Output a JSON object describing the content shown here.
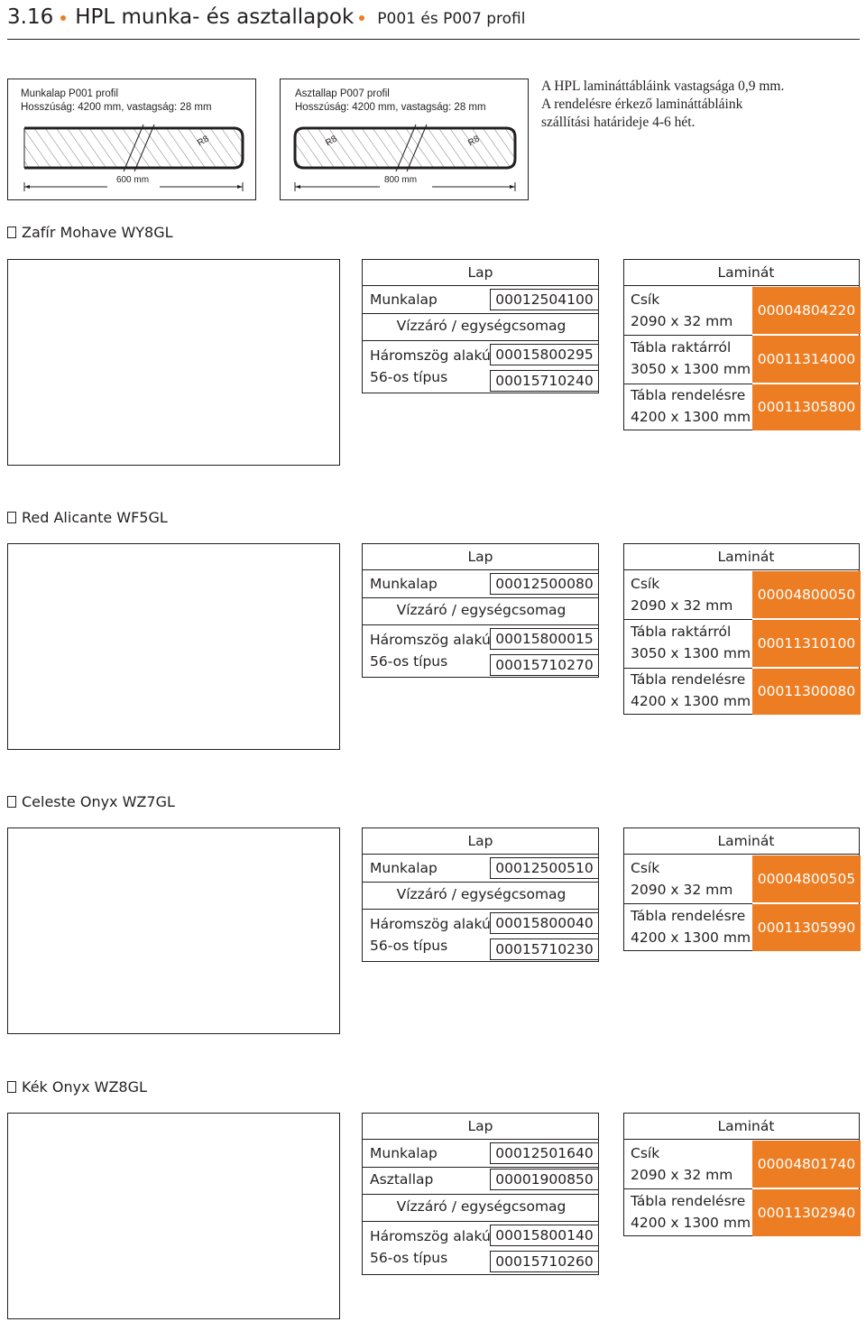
{
  "header": {
    "number": "3.16",
    "title": "HPL munka- és asztallapok",
    "subtitle": "P001 és P007 profil"
  },
  "profiles": [
    {
      "name": "Munkalap P001 profil",
      "desc": "Hosszúság: 4200 mm, vastagság: 28 mm",
      "radius": "R8",
      "width_label": "600 mm"
    },
    {
      "name": "Asztallap P007 profil",
      "desc": "Hosszúság: 4200 mm, vastagság: 28 mm",
      "radius_left": "R8",
      "radius_right": "R8",
      "width_label": "800 mm"
    }
  ],
  "note": {
    "line1": "A HPL laminát­tábláink vastagsága 0,9 mm.",
    "line2": "A rendelésre érkező laminát­tábláink",
    "line3": "szállítási határideje 4-6 hét."
  },
  "sections": [
    {
      "name": "Zafír Mohave WY8GL",
      "lap": {
        "header": "Lap",
        "munkalap_label": "Munkalap",
        "munkalap_code": "00012504100",
        "vizzaro_label": "Vízzáró / egységcsomag",
        "haromszog_label": "Háromszög alakú",
        "haromszog_code": "00015800295",
        "tipus_label": "56-os típus",
        "tipus_code": "00015710240"
      },
      "laminat": {
        "header": "Laminát",
        "rows": [
          {
            "label1": "Csík",
            "label2": "2090 x 32 mm",
            "code": "00004804220"
          },
          {
            "label1": "Tábla raktárról",
            "label2": "3050 x 1300 mm",
            "code": "00011314000"
          },
          {
            "label1": "Tábla rendelésre",
            "label2": "4200 x 1300 mm",
            "code": "00011305800"
          }
        ]
      }
    },
    {
      "name": "Red Alicante WF5GL",
      "lap": {
        "header": "Lap",
        "munkalap_label": "Munkalap",
        "munkalap_code": "00012500080",
        "vizzaro_label": "Vízzáró / egységcsomag",
        "haromszog_label": "Háromszög alakú",
        "haromszog_code": "00015800015",
        "tipus_label": "56-os típus",
        "tipus_code": "00015710270"
      },
      "laminat": {
        "header": "Laminát",
        "rows": [
          {
            "label1": "Csík",
            "label2": "2090 x 32 mm",
            "code": "00004800050"
          },
          {
            "label1": "Tábla raktárról",
            "label2": "3050 x 1300 mm",
            "code": "00011310100"
          },
          {
            "label1": "Tábla rendelésre",
            "label2": "4200 x 1300 mm",
            "code": "00011300080"
          }
        ]
      }
    },
    {
      "name": "Celeste Onyx WZ7GL",
      "lap": {
        "header": "Lap",
        "munkalap_label": "Munkalap",
        "munkalap_code": "00012500510",
        "vizzaro_label": "Vízzáró / egységcsomag",
        "haromszog_label": "Háromszög alakú",
        "haromszog_code": "00015800040",
        "tipus_label": "56-os típus",
        "tipus_code": "00015710230"
      },
      "laminat": {
        "header": "Laminát",
        "rows": [
          {
            "label1": "Csík",
            "label2": "2090 x 32 mm",
            "code": "00004800505"
          },
          {
            "label1": "Tábla rendelésre",
            "label2": "4200 x 1300 mm",
            "code": "00011305990"
          }
        ]
      }
    },
    {
      "name": "Kék Onyx WZ8GL",
      "lap": {
        "header": "Lap",
        "munkalap_label": "Munkalap",
        "munkalap_code": "00012501640",
        "asztallap_label": "Asztallap",
        "asztallap_code": "00001900850",
        "vizzaro_label": "Vízzáró / egységcsomag",
        "haromszog_label": "Háromszög alakú",
        "haromszog_code": "00015800140",
        "tipus_label": "56-os típus",
        "tipus_code": "00015710260"
      },
      "laminat": {
        "header": "Laminát",
        "rows": [
          {
            "label1": "Csík",
            "label2": "2090 x 32 mm",
            "code": "00004801740"
          },
          {
            "label1": "Tábla rendelésre",
            "label2": "4200 x 1300 mm",
            "code": "00011302940"
          }
        ]
      }
    }
  ],
  "colors": {
    "accent": "#ed7d22",
    "text": "#231f20"
  }
}
